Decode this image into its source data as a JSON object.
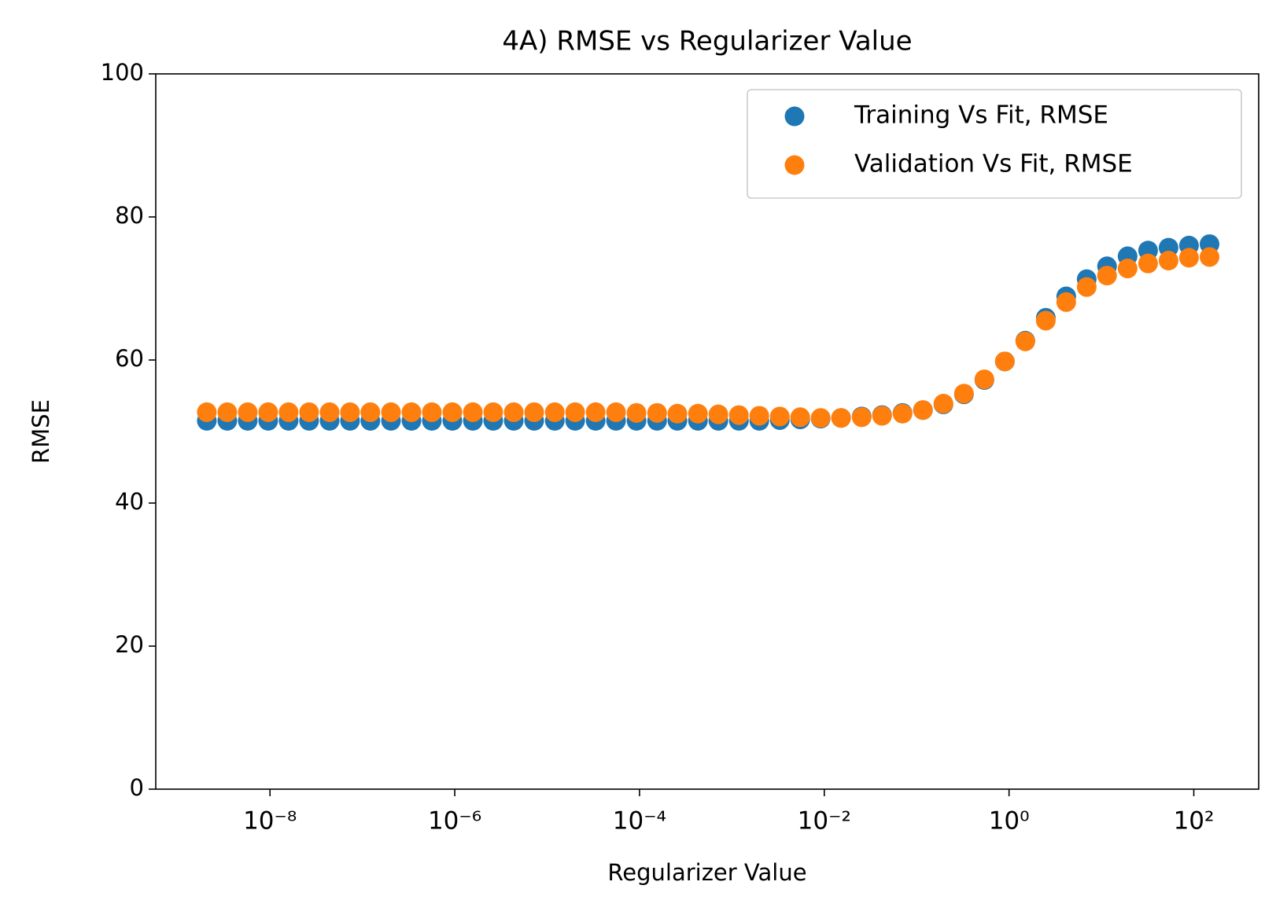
{
  "chart_data": {
    "type": "scatter",
    "title": "4A) RMSE vs Regularizer Value",
    "x_label": "Regularizer Value",
    "y_label": "RMSE",
    "xscale": "log",
    "x": [
      2.07e-09,
      3.45e-09,
      5.74e-09,
      9.56e-09,
      1.59e-08,
      2.65e-08,
      4.42e-08,
      7.35e-08,
      1.22e-07,
      2.04e-07,
      3.4e-07,
      5.65e-07,
      9.42e-07,
      1.57e-06,
      2.61e-06,
      4.35e-06,
      7.24e-06,
      1.21e-05,
      2.01e-05,
      3.35e-05,
      5.57e-05,
      9.28e-05,
      0.000155,
      0.000257,
      0.000429,
      0.000714,
      0.00119,
      0.00198,
      0.0033,
      0.00549,
      0.00914,
      0.0152,
      0.0254,
      0.0422,
      0.0703,
      0.117,
      0.195,
      0.325,
      0.541,
      0.901,
      1.5,
      2.5,
      4.16,
      6.93,
      11.5,
      19.2,
      32.0,
      53.3,
      88.7,
      148
    ],
    "series": [
      {
        "name": "Training Vs Fit, RMSE",
        "color": "#1f77b4",
        "values": [
          51.5,
          51.5,
          51.5,
          51.5,
          51.5,
          51.5,
          51.5,
          51.5,
          51.5,
          51.5,
          51.5,
          51.5,
          51.5,
          51.5,
          51.5,
          51.5,
          51.5,
          51.5,
          51.5,
          51.5,
          51.5,
          51.5,
          51.5,
          51.5,
          51.5,
          51.5,
          51.5,
          51.5,
          51.6,
          51.7,
          51.8,
          51.9,
          52.1,
          52.3,
          52.6,
          53.0,
          53.8,
          55.2,
          57.2,
          59.8,
          62.7,
          65.9,
          68.9,
          71.3,
          73.1,
          74.5,
          75.3,
          75.7,
          76.0,
          76.2
        ]
      },
      {
        "name": "Validation Vs Fit, RMSE",
        "color": "#ff7f0e",
        "values": [
          52.7,
          52.7,
          52.7,
          52.7,
          52.7,
          52.7,
          52.7,
          52.7,
          52.7,
          52.7,
          52.7,
          52.7,
          52.7,
          52.7,
          52.7,
          52.7,
          52.7,
          52.7,
          52.7,
          52.7,
          52.7,
          52.6,
          52.6,
          52.5,
          52.5,
          52.4,
          52.3,
          52.2,
          52.1,
          52.0,
          51.9,
          51.9,
          52.0,
          52.2,
          52.5,
          53.0,
          53.9,
          55.3,
          57.3,
          59.8,
          62.6,
          65.5,
          68.1,
          70.2,
          71.8,
          72.8,
          73.5,
          73.9,
          74.3,
          74.4
        ]
      }
    ],
    "xlim": [
      5.8e-10,
      504
    ],
    "xticks": [
      {
        "value": 1e-08,
        "label": "10⁻⁸"
      },
      {
        "value": 1e-06,
        "label": "10⁻⁶"
      },
      {
        "value": 0.0001,
        "label": "10⁻⁴"
      },
      {
        "value": 0.01,
        "label": "10⁻²"
      },
      {
        "value": 1,
        "label": "10⁰"
      },
      {
        "value": 100,
        "label": "10²"
      }
    ],
    "ylim": [
      0,
      100
    ],
    "yticks": [
      0,
      20,
      40,
      60,
      80,
      100
    ],
    "grid": false,
    "legend": "upper right"
  }
}
